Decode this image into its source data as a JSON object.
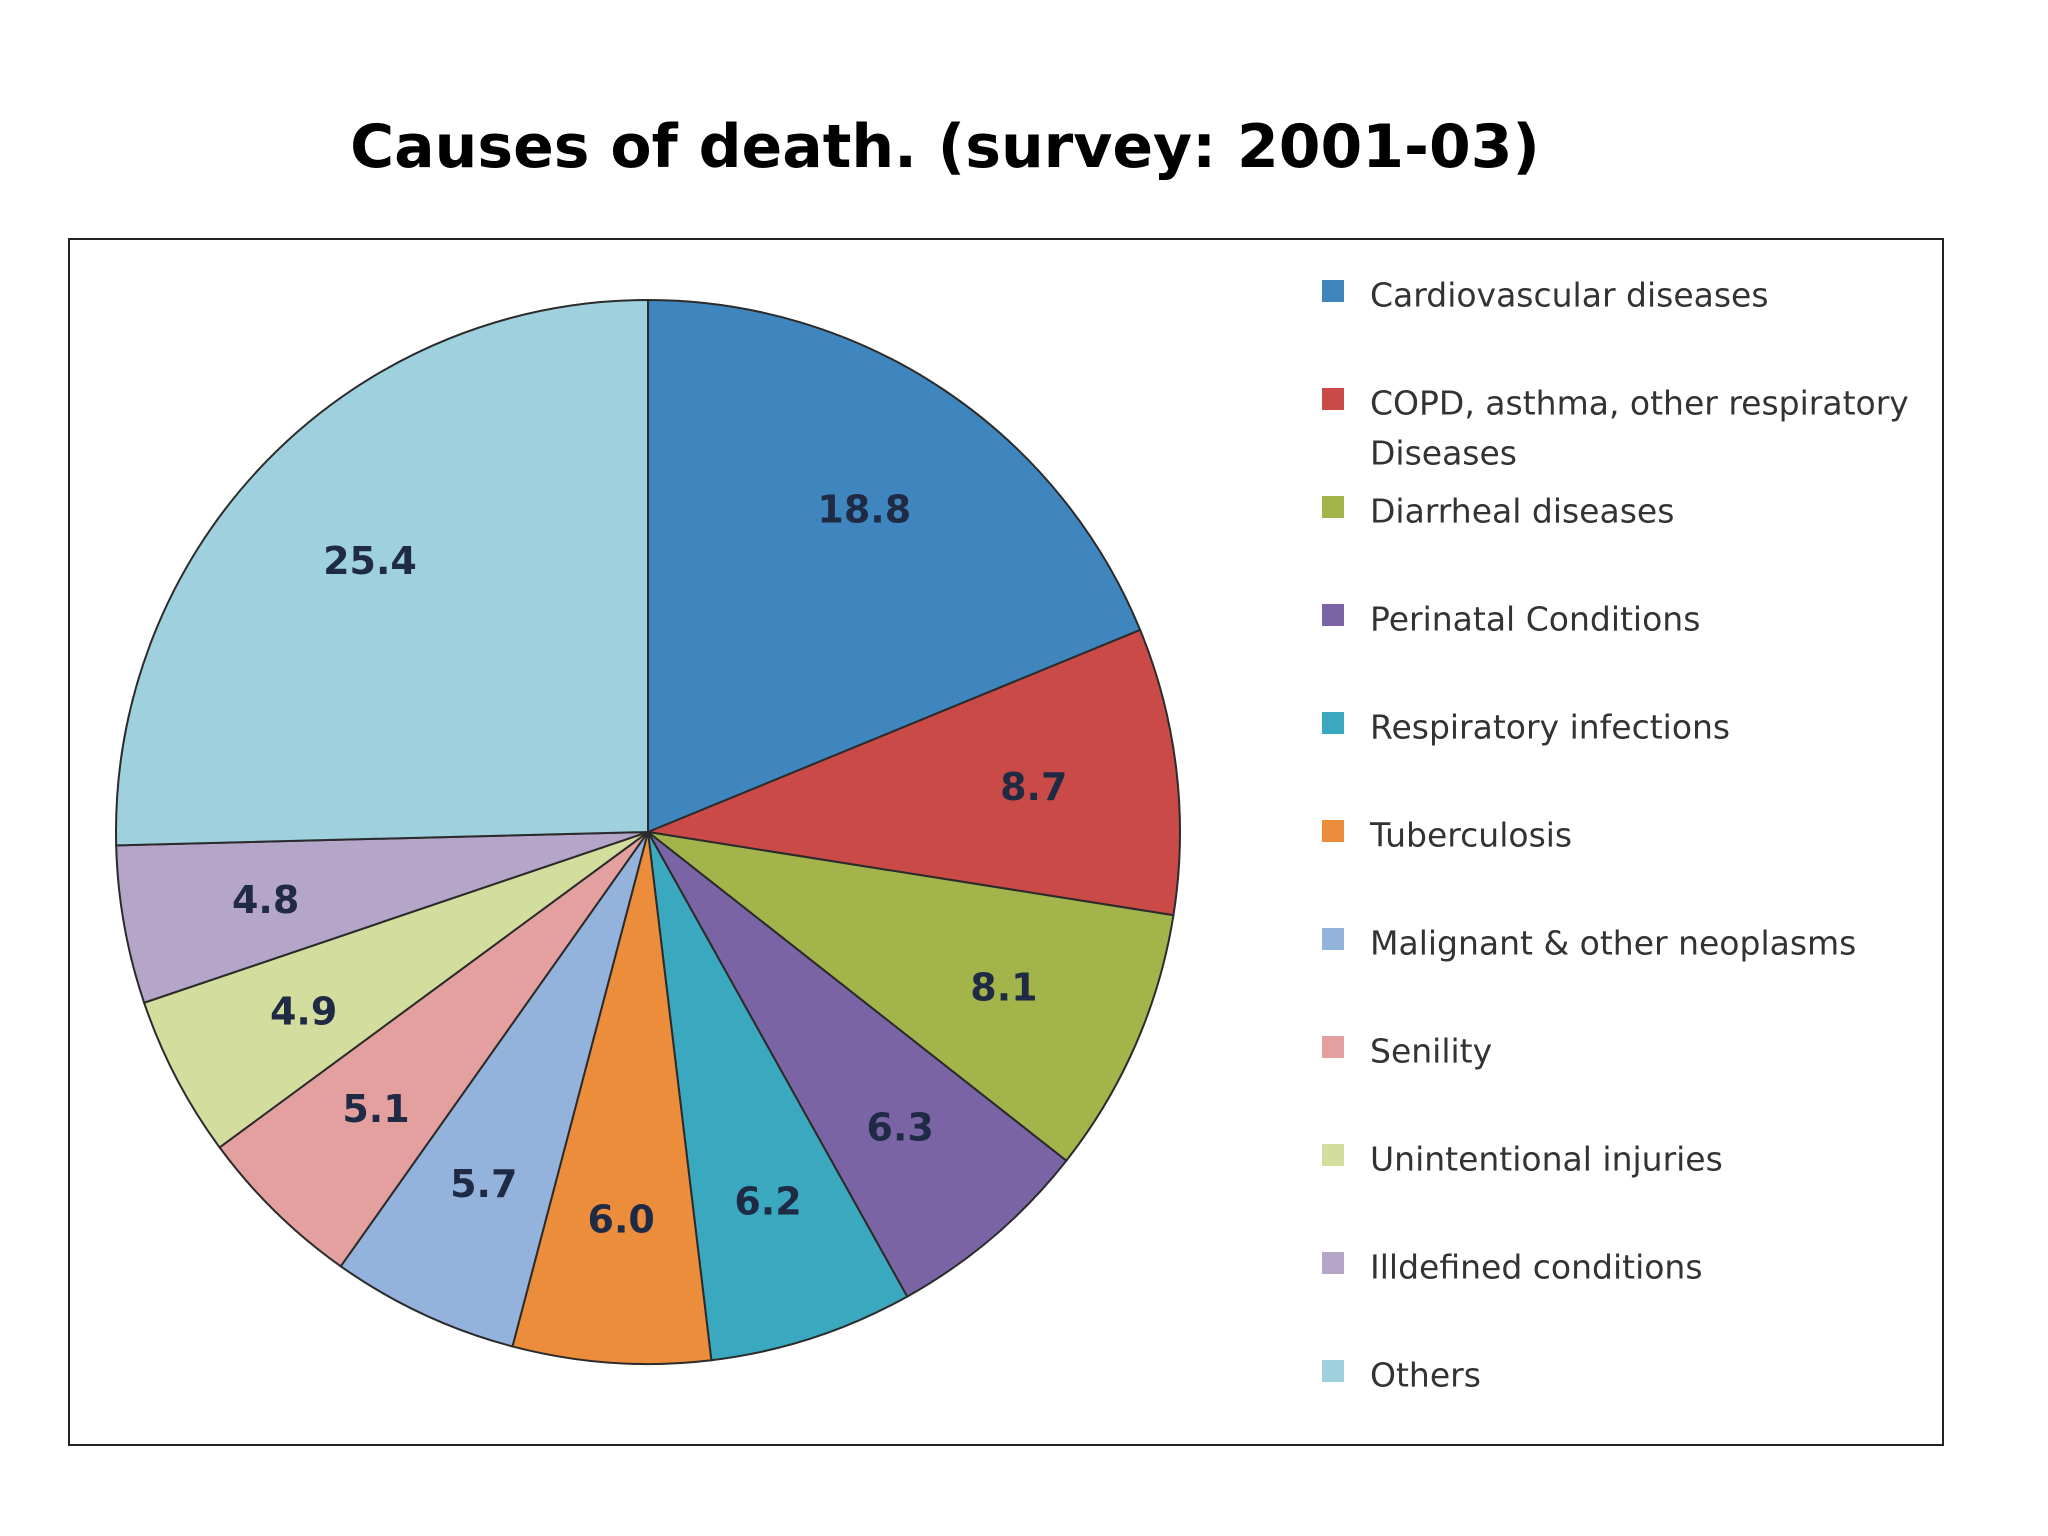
{
  "title": "Causes of death. (survey: 2001-03)",
  "chart_data": {
    "type": "pie",
    "start_angle_deg": 0,
    "direction": "clockwise",
    "legend_position": "right",
    "slices": [
      {
        "label": "Cardiovascular diseases",
        "value": 18.8,
        "display": "18.8",
        "color": "#3F86BF"
      },
      {
        "label": "COPD, asthma, other respiratory Diseases",
        "legend_lines": [
          "COPD, asthma, other respiratory",
          "Diseases"
        ],
        "value": 8.7,
        "display": "8.7",
        "color": "#C94A46"
      },
      {
        "label": "Diarrheal diseases",
        "value": 8.1,
        "display": "8.1",
        "color": "#A3B44B"
      },
      {
        "label": "Perinatal Conditions",
        "value": 6.3,
        "display": "6.3",
        "color": "#7B64A5"
      },
      {
        "label": "Respiratory infections",
        "value": 6.2,
        "display": "6.2",
        "color": "#3AA9BF"
      },
      {
        "label": "Tuberculosis",
        "value": 6.0,
        "display": "6.0",
        "color": "#EB8D3A"
      },
      {
        "label": "Malignant & other neoplasms",
        "value": 5.7,
        "display": "5.7",
        "color": "#94B3DC"
      },
      {
        "label": "Senility",
        "value": 5.1,
        "display": "5.1",
        "color": "#E3A09E"
      },
      {
        "label": "Unintentional injuries",
        "value": 4.9,
        "display": "4.9",
        "color": "#D3DD9E"
      },
      {
        "label": "Illdefined conditions",
        "value": 4.8,
        "display": "4.8",
        "color": "#B4A5C9"
      },
      {
        "label": "Others",
        "value": 25.4,
        "display": "25.4",
        "color": "#9ED0DD"
      }
    ]
  }
}
